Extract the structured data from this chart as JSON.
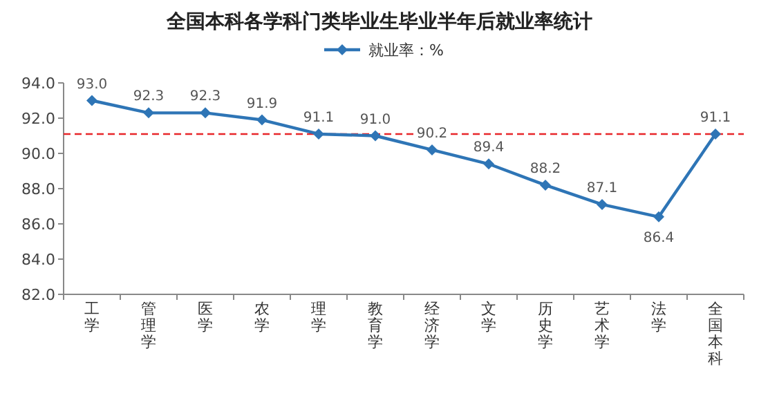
{
  "chart_data": {
    "type": "line",
    "title": "全国本科各学科门类毕业生毕业半年后就业率统计",
    "categories": [
      "工学",
      "管理学",
      "医学",
      "农学",
      "理学",
      "教育学",
      "经济学",
      "文学",
      "历史学",
      "艺术学",
      "法学",
      "全国本科"
    ],
    "series": [
      {
        "name": "就业率：%",
        "color": "#2e75b6",
        "values": [
          93.0,
          92.3,
          92.3,
          91.9,
          91.1,
          91.0,
          90.2,
          89.4,
          88.2,
          87.1,
          86.4,
          91.1
        ],
        "value_labels": [
          "93.0",
          "92.3",
          "92.3",
          "91.9",
          "91.1",
          "91.0",
          "90.2",
          "89.4",
          "88.2",
          "87.1",
          "86.4",
          "91.1"
        ]
      }
    ],
    "ylim": [
      82,
      94
    ],
    "yticks": [
      {
        "value": 82,
        "label": "82.0"
      },
      {
        "value": 84,
        "label": "84.0"
      },
      {
        "value": 86,
        "label": "86.0"
      },
      {
        "value": 88,
        "label": "88.0"
      },
      {
        "value": 90,
        "label": "90.0"
      },
      {
        "value": 92,
        "label": "92.0"
      },
      {
        "value": 94,
        "label": "94.0"
      }
    ],
    "ref_lines": [
      {
        "axis": "y",
        "value": 91.1,
        "color": "#e8262a",
        "line_style": "dashed"
      }
    ],
    "marker": "diamond",
    "line_style": "solid",
    "legend": "top",
    "grid": false
  }
}
